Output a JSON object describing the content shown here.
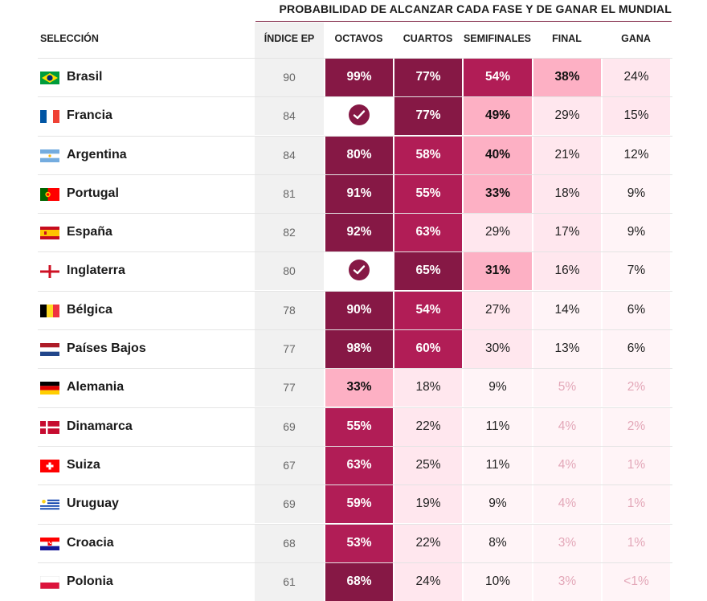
{
  "title": "PROBABILIDAD DE ALCANZAR CADA FASE Y DE GANAR EL MUNDIAL",
  "columns": {
    "team": "SELECCIÓN",
    "index": "ÍNDICE EP",
    "octavos": "OCTAVOS",
    "cuartos": "CUARTOS",
    "semifinales": "SEMIFINALES",
    "final": "FINAL",
    "gana": "GANA"
  },
  "teams": [
    {
      "name": "Brasil",
      "flag": "brazil",
      "index": "90",
      "octavos": "99%",
      "cuartos": "77%",
      "semifinales": "54%",
      "final": "38%",
      "gana": "24%"
    },
    {
      "name": "Francia",
      "flag": "france",
      "index": "84",
      "octavos": "check",
      "cuartos": "77%",
      "semifinales": "49%",
      "final": "29%",
      "gana": "15%"
    },
    {
      "name": "Argentina",
      "flag": "argentina",
      "index": "84",
      "octavos": "80%",
      "cuartos": "58%",
      "semifinales": "40%",
      "final": "21%",
      "gana": "12%"
    },
    {
      "name": "Portugal",
      "flag": "portugal",
      "index": "81",
      "octavos": "91%",
      "cuartos": "55%",
      "semifinales": "33%",
      "final": "18%",
      "gana": "9%"
    },
    {
      "name": "España",
      "flag": "spain",
      "index": "82",
      "octavos": "92%",
      "cuartos": "63%",
      "semifinales": "29%",
      "final": "17%",
      "gana": "9%"
    },
    {
      "name": "Inglaterra",
      "flag": "england",
      "index": "80",
      "octavos": "check",
      "cuartos": "65%",
      "semifinales": "31%",
      "final": "16%",
      "gana": "7%"
    },
    {
      "name": "Bélgica",
      "flag": "belgium",
      "index": "78",
      "octavos": "90%",
      "cuartos": "54%",
      "semifinales": "27%",
      "final": "14%",
      "gana": "6%"
    },
    {
      "name": "Países Bajos",
      "flag": "netherlands",
      "index": "77",
      "octavos": "98%",
      "cuartos": "60%",
      "semifinales": "30%",
      "final": "13%",
      "gana": "6%"
    },
    {
      "name": "Alemania",
      "flag": "germany",
      "index": "77",
      "octavos": "33%",
      "cuartos": "18%",
      "semifinales": "9%",
      "final": "5%",
      "gana": "2%"
    },
    {
      "name": "Dinamarca",
      "flag": "denmark",
      "index": "69",
      "octavos": "55%",
      "cuartos": "22%",
      "semifinales": "11%",
      "final": "4%",
      "gana": "2%"
    },
    {
      "name": "Suiza",
      "flag": "switzerland",
      "index": "67",
      "octavos": "63%",
      "cuartos": "25%",
      "semifinales": "11%",
      "final": "4%",
      "gana": "1%"
    },
    {
      "name": "Uruguay",
      "flag": "uruguay",
      "index": "69",
      "octavos": "59%",
      "cuartos": "19%",
      "semifinales": "9%",
      "final": "4%",
      "gana": "1%"
    },
    {
      "name": "Croacia",
      "flag": "croatia",
      "index": "68",
      "octavos": "53%",
      "cuartos": "22%",
      "semifinales": "8%",
      "final": "3%",
      "gana": "1%"
    },
    {
      "name": "Polonia",
      "flag": "poland",
      "index": "61",
      "octavos": "68%",
      "cuartos": "24%",
      "semifinales": "10%",
      "final": "3%",
      "gana": "<1%"
    }
  ],
  "colors": {
    "darkest": "#861845",
    "dark": "#b11d56",
    "mid": "#fdb0c4",
    "light": "#ffe7ee",
    "lightest": "#fff4f7",
    "check": "#861845"
  }
}
